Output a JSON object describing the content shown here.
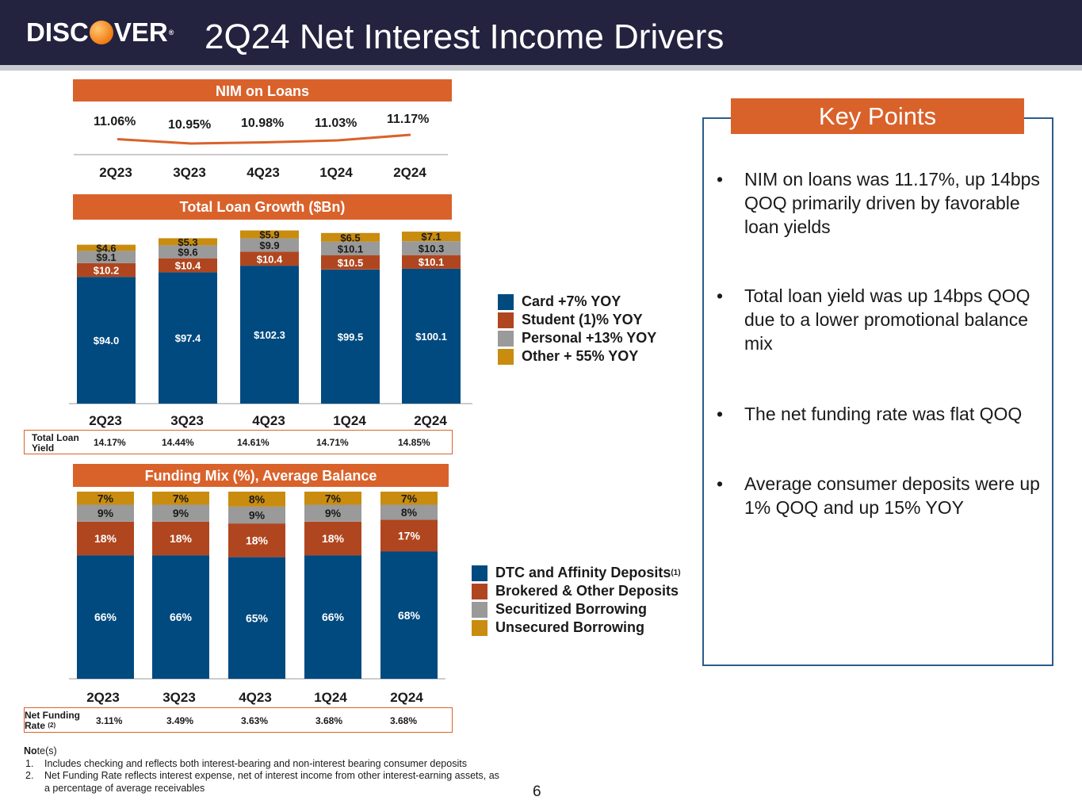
{
  "header": {
    "logo_text_a": "DISC",
    "logo_text_b": "VER",
    "logo_tm": "®",
    "title": "2Q24 Net Interest Income Drivers"
  },
  "colors": {
    "navy_header": "#23223f",
    "orange": "#d9622b",
    "card": "#004a80",
    "student": "#b0461f",
    "personal": "#9a9a9a",
    "other": "#c98c0e",
    "keybox_border": "#2b5c8a"
  },
  "nim": {
    "title": "NIM on Loans",
    "quarters": [
      "2Q23",
      "3Q23",
      "4Q23",
      "1Q24",
      "2Q24"
    ],
    "values": [
      11.06,
      10.95,
      10.98,
      11.03,
      11.17
    ],
    "labels": [
      "11.06%",
      "10.95%",
      "10.98%",
      "11.03%",
      "11.17%"
    ]
  },
  "loan_growth": {
    "title": "Total Loan Growth ($Bn)",
    "yield_label_line1": "Total Loan",
    "yield_label_line2": "Yield",
    "yields": [
      "14.17%",
      "14.44%",
      "14.61%",
      "14.71%",
      "14.85%"
    ],
    "legend": [
      "Card +7% YOY",
      "Student (1)% YOY",
      "Personal +13% YOY",
      "Other + 55% YOY"
    ]
  },
  "funding": {
    "title": "Funding Mix (%), Average Balance",
    "rate_label_line1": "Net Funding",
    "rate_label_line2": "Rate",
    "rate_sup": "(2)",
    "rates": [
      "3.11%",
      "3.49%",
      "3.63%",
      "3.68%",
      "3.68%"
    ],
    "legend": [
      "DTC and Affinity Deposits",
      "Brokered & Other Deposits",
      "Securitized Borrowing",
      "Unsecured Borrowing"
    ],
    "legend_sup": "(1)"
  },
  "chart_data": [
    {
      "type": "line",
      "title": "NIM on Loans",
      "categories": [
        "2Q23",
        "3Q23",
        "4Q23",
        "1Q24",
        "2Q24"
      ],
      "series": [
        {
          "name": "NIM on Loans (%)",
          "values": [
            11.06,
            10.95,
            10.98,
            11.03,
            11.17
          ]
        }
      ]
    },
    {
      "type": "bar",
      "stacked": true,
      "title": "Total Loan Growth ($Bn)",
      "categories": [
        "2Q23",
        "3Q23",
        "4Q23",
        "1Q24",
        "2Q24"
      ],
      "series": [
        {
          "name": "Card",
          "values": [
            94.0,
            97.4,
            102.3,
            99.5,
            100.1
          ],
          "labels": [
            "$94.0",
            "$97.4",
            "$102.3",
            "$99.5",
            "$100.1"
          ]
        },
        {
          "name": "Student",
          "values": [
            10.2,
            10.4,
            10.4,
            10.5,
            10.1
          ],
          "labels": [
            "$10.2",
            "$10.4",
            "$10.4",
            "$10.5",
            "$10.1"
          ]
        },
        {
          "name": "Personal",
          "values": [
            9.1,
            9.6,
            9.9,
            10.1,
            10.3
          ],
          "labels": [
            "$9.1",
            "$9.6",
            "$9.9",
            "$10.1",
            "$10.3"
          ]
        },
        {
          "name": "Other",
          "values": [
            4.6,
            5.3,
            5.9,
            6.5,
            7.1
          ],
          "labels": [
            "$4.6",
            "$5.3",
            "$5.9",
            "$6.5",
            "$7.1"
          ]
        }
      ]
    },
    {
      "type": "bar",
      "stacked": true,
      "title": "Funding Mix (%), Average Balance",
      "categories": [
        "2Q23",
        "3Q23",
        "4Q23",
        "1Q24",
        "2Q24"
      ],
      "series": [
        {
          "name": "DTC and Affinity Deposits",
          "values": [
            66,
            66,
            65,
            66,
            68
          ],
          "labels": [
            "66%",
            "66%",
            "65%",
            "66%",
            "68%"
          ]
        },
        {
          "name": "Brokered & Other Deposits",
          "values": [
            18,
            18,
            18,
            18,
            17
          ],
          "labels": [
            "18%",
            "18%",
            "18%",
            "18%",
            "17%"
          ]
        },
        {
          "name": "Securitized Borrowing",
          "values": [
            9,
            9,
            9,
            9,
            8
          ],
          "labels": [
            "9%",
            "9%",
            "9%",
            "9%",
            "8%"
          ]
        },
        {
          "name": "Unsecured Borrowing",
          "values": [
            7,
            7,
            8,
            7,
            7
          ],
          "labels": [
            "7%",
            "7%",
            "8%",
            "7%",
            "7%"
          ]
        }
      ]
    }
  ],
  "key_points": {
    "title": "Key Points",
    "bullet": "•",
    "items": [
      "NIM on loans was 11.17%, up 14bps QOQ primarily driven by favorable loan yields",
      "Total loan yield was up 14bps QOQ due to a lower promotional balance mix",
      "The net funding rate was flat QOQ",
      "Average consumer deposits were up 1% QOQ and up 15% YOY"
    ]
  },
  "notes": {
    "title_bold": "No",
    "title_rest": "te(s)",
    "items": [
      {
        "num": "1.",
        "text": "Includes checking and reflects both interest-bearing and non-interest bearing consumer deposits"
      },
      {
        "num": "2.",
        "text": "Net Funding Rate reflects interest expense, net of interest income from other interest-earning assets, as a percentage of average receivables"
      }
    ]
  },
  "page_number": "6"
}
